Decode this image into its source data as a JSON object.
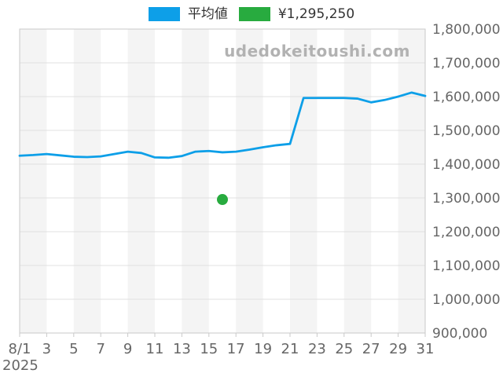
{
  "legend": {
    "items": [
      {
        "label": "平均値",
        "color": "#0d9fe8"
      },
      {
        "label": "¥1,295,250",
        "color": "#28ab3f"
      }
    ]
  },
  "watermark": "udedokeitoushi.com",
  "chart_data": {
    "type": "line",
    "title": "",
    "xlabel": "",
    "ylabel": "",
    "x": [
      1,
      2,
      3,
      4,
      5,
      6,
      7,
      8,
      9,
      10,
      11,
      12,
      13,
      14,
      15,
      16,
      17,
      18,
      19,
      20,
      21,
      22,
      23,
      24,
      25,
      26,
      27,
      28,
      29,
      30,
      31
    ],
    "series": [
      {
        "name": "平均値",
        "color": "#0d9fe8",
        "values": [
          1425000,
          1427000,
          1430000,
          1426000,
          1422000,
          1421000,
          1423000,
          1430000,
          1437000,
          1433000,
          1420000,
          1419000,
          1424000,
          1437000,
          1439000,
          1435000,
          1437000,
          1443000,
          1450000,
          1456000,
          1460000,
          1596000,
          1596000,
          1596000,
          1596000,
          1594000,
          1583000,
          1590000,
          1600000,
          1612000,
          1602000
        ]
      }
    ],
    "point": {
      "x": 16,
      "y": 1295250,
      "label": "¥1,295,250",
      "color": "#28ab3f"
    },
    "ylim": [
      900000,
      1800000
    ],
    "y_tick_step": 100000,
    "x_ticks": [
      {
        "day": 1,
        "label": "8/1"
      },
      {
        "day": 3,
        "label": "3"
      },
      {
        "day": 5,
        "label": "5"
      },
      {
        "day": 7,
        "label": "7"
      },
      {
        "day": 9,
        "label": "9"
      },
      {
        "day": 11,
        "label": "11"
      },
      {
        "day": 13,
        "label": "13"
      },
      {
        "day": 15,
        "label": "15"
      },
      {
        "day": 17,
        "label": "17"
      },
      {
        "day": 19,
        "label": "19"
      },
      {
        "day": 21,
        "label": "21"
      },
      {
        "day": 23,
        "label": "23"
      },
      {
        "day": 25,
        "label": "25"
      },
      {
        "day": 27,
        "label": "27"
      },
      {
        "day": 29,
        "label": "29"
      },
      {
        "day": 31,
        "label": "31"
      }
    ],
    "year_label": "2025",
    "grid": true,
    "legend_position": "top",
    "band_color": "#f4f4f4",
    "grid_color": "#e0e0e0",
    "border_color": "#c9c9c9",
    "tick_color": "#c9c9c9",
    "label_color": "#666666"
  }
}
